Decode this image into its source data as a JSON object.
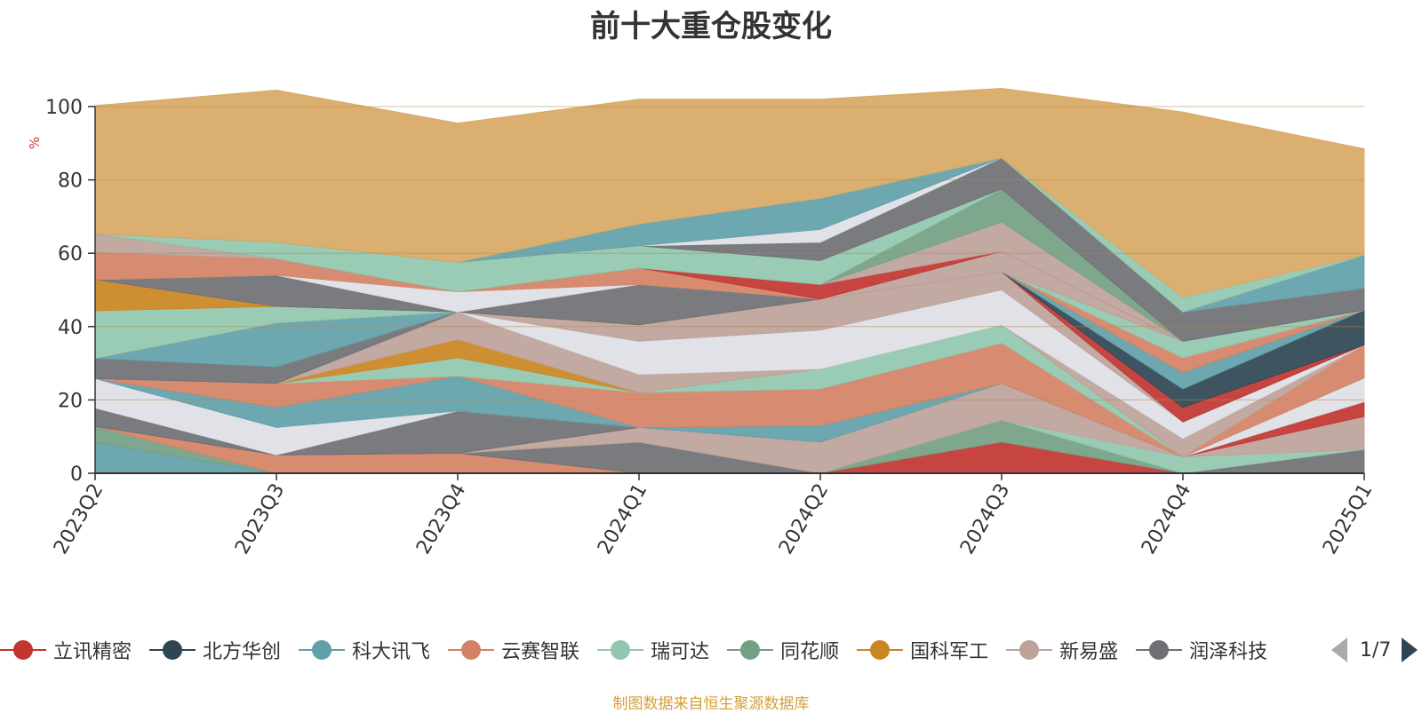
{
  "title": "前十大重仓股变化",
  "source_note": "制图数据来自恒生聚源数据库",
  "legend_pager": {
    "text": "1/7"
  },
  "legend": [
    {
      "name": "立讯精密",
      "color": "#c23531"
    },
    {
      "name": "北方华创",
      "color": "#2f4554"
    },
    {
      "name": "科大讯飞",
      "color": "#61a0a8"
    },
    {
      "name": "云赛智联",
      "color": "#d48265"
    },
    {
      "name": "瑞可达",
      "color": "#91c7ae"
    },
    {
      "name": "同花顺",
      "color": "#749f83"
    },
    {
      "name": "国科军工",
      "color": "#ca8622"
    },
    {
      "name": "新易盛",
      "color": "#bda29a"
    },
    {
      "name": "润泽科技",
      "color": "#6e7074"
    }
  ],
  "chart_data": {
    "type": "area",
    "stacked": true,
    "title": "前十大重仓股变化",
    "ylabel": "%",
    "ylim": [
      0,
      100
    ],
    "yticks": [
      0,
      20,
      40,
      60,
      80,
      100
    ],
    "grid": true,
    "x": [
      "2023Q2",
      "2023Q3",
      "2023Q4",
      "2024Q1",
      "2024Q2",
      "2024Q3",
      "2024Q4",
      "2025Q1"
    ],
    "series": [
      {
        "color": "#61a0a8",
        "values": [
          8.5,
          0,
          0,
          0,
          0,
          0,
          0,
          0
        ]
      },
      {
        "color": "#749f83",
        "values": [
          4.3,
          0,
          0,
          0,
          0,
          0,
          0,
          0
        ]
      },
      {
        "color": "#d48265",
        "values": [
          0,
          5,
          5.5,
          0,
          0,
          0,
          0,
          0
        ]
      },
      {
        "color": "#ca8622",
        "values": [
          0,
          0,
          0,
          0,
          0,
          0,
          0,
          0
        ]
      },
      {
        "color": "#6e7074",
        "values": [
          0,
          0,
          0,
          8.5,
          0,
          0,
          0,
          6.5
        ]
      },
      {
        "color": "#c23531",
        "values": [
          0,
          0,
          0,
          0,
          0,
          8.5,
          0,
          0
        ]
      },
      {
        "color": "#749f83",
        "values": [
          0,
          0,
          0,
          0,
          0,
          6,
          0,
          0
        ]
      },
      {
        "color": "#91c7ae",
        "values": [
          0,
          0,
          0,
          0,
          0,
          0,
          4.5,
          0
        ]
      },
      {
        "color": "#bda29a",
        "values": [
          0,
          0,
          0,
          4,
          8.5,
          10,
          0,
          9
        ]
      },
      {
        "color": "#c23531",
        "values": [
          0,
          0,
          0,
          0,
          0,
          0,
          0,
          4
        ]
      },
      {
        "color": "#6e7074",
        "values": [
          5,
          0,
          11.5,
          0,
          0,
          0,
          0,
          0
        ]
      },
      {
        "color": "#dddfe6",
        "values": [
          8,
          7.5,
          0,
          0,
          0,
          0,
          0,
          6.5
        ]
      },
      {
        "color": "#61a0a8",
        "values": [
          0,
          5.5,
          9.5,
          0,
          4.5,
          0,
          0,
          0
        ]
      },
      {
        "color": "#d48265",
        "values": [
          0,
          6.5,
          0,
          9.5,
          10,
          11,
          0,
          9
        ]
      },
      {
        "color": "#91c7ae",
        "values": [
          0,
          0,
          5,
          0,
          5.5,
          5,
          0,
          0
        ]
      },
      {
        "color": "#ca8622",
        "values": [
          0,
          0,
          5,
          0,
          0,
          0,
          0,
          0
        ]
      },
      {
        "color": "#bda29a",
        "values": [
          0,
          0,
          7.5,
          5,
          0,
          0,
          5,
          0
        ]
      },
      {
        "color": "#dddfe6",
        "values": [
          0,
          0,
          0,
          9,
          10.5,
          9.5,
          4.5,
          0
        ]
      },
      {
        "color": "#bda29a",
        "values": [
          0,
          0,
          0,
          4.5,
          8.5,
          5,
          0,
          0
        ]
      },
      {
        "color": "#6e7074",
        "values": [
          5.5,
          4.5,
          0,
          0,
          0,
          0,
          0,
          0
        ]
      },
      {
        "color": "#61a0a8",
        "values": [
          0,
          12,
          0,
          0,
          0,
          0,
          0,
          0
        ]
      },
      {
        "color": "#c23531",
        "values": [
          0,
          0,
          0,
          0,
          0,
          0,
          4,
          0
        ]
      },
      {
        "color": "#2f4554",
        "values": [
          0,
          0,
          0,
          0,
          0,
          0,
          5,
          9.5
        ]
      },
      {
        "color": "#61a0a8",
        "values": [
          0,
          0,
          0,
          0,
          0,
          0,
          4.5,
          0
        ]
      },
      {
        "color": "#d48265",
        "values": [
          0,
          0,
          0,
          0,
          0,
          0,
          4,
          0
        ]
      },
      {
        "color": "#91c7ae",
        "values": [
          13,
          4.5,
          0,
          0,
          0,
          0,
          4.5,
          0
        ]
      },
      {
        "color": "#ca8622",
        "values": [
          8.5,
          0,
          0,
          0,
          0,
          0,
          0,
          0
        ]
      },
      {
        "color": "#6e7074",
        "values": [
          0,
          8.5,
          0,
          11,
          0,
          0,
          0,
          0
        ]
      },
      {
        "color": "#dddfe6",
        "values": [
          0,
          0,
          5.5,
          0,
          0,
          0,
          0,
          0
        ]
      },
      {
        "color": "#d48265",
        "values": [
          7.5,
          4.5,
          0,
          4.5,
          0,
          0,
          0,
          0
        ]
      },
      {
        "color": "#bda29a",
        "values": [
          5,
          0,
          0,
          0,
          0,
          5.5,
          0,
          0
        ]
      },
      {
        "color": "#c23531",
        "values": [
          0,
          0,
          0,
          0,
          4,
          0,
          0,
          0
        ]
      },
      {
        "color": "#bda29a",
        "values": [
          0,
          0,
          0,
          0,
          0,
          8,
          0,
          0
        ]
      },
      {
        "color": "#749f83",
        "values": [
          0,
          0,
          0,
          0,
          0,
          9,
          0,
          0
        ]
      },
      {
        "color": "#91c7ae",
        "values": [
          0,
          4.5,
          8,
          6,
          6.5,
          0,
          0,
          0
        ]
      },
      {
        "color": "#6e7074",
        "values": [
          0,
          0,
          0,
          0,
          5,
          8.5,
          8,
          6
        ]
      },
      {
        "color": "#dddfe6",
        "values": [
          0,
          0,
          0,
          0,
          3.5,
          0,
          0,
          0
        ]
      },
      {
        "color": "#61a0a8",
        "values": [
          0,
          0,
          0,
          6,
          8.5,
          0,
          0,
          9
        ]
      },
      {
        "color": "#91c7ae",
        "values": [
          0,
          0,
          0,
          0,
          0,
          0,
          4,
          0
        ]
      },
      {
        "color": "#d7a863",
        "values": [
          35,
          41.5,
          38,
          34,
          27,
          19,
          50.5,
          29
        ]
      }
    ]
  }
}
